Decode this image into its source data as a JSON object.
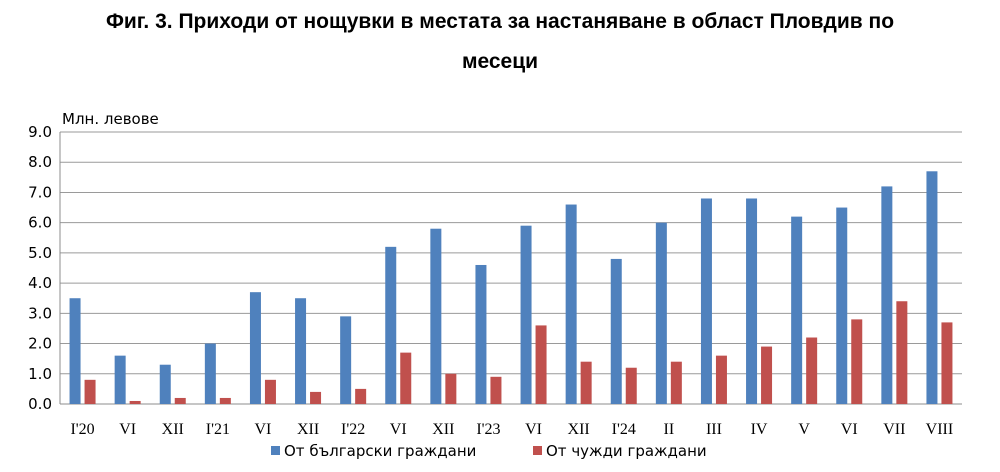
{
  "chart_data": {
    "type": "bar",
    "title_line1": "Фиг. 3. Приходи от нощувки в местата за настаняване в област Пловдив по",
    "title_line2": "месеци",
    "ylabel": "Млн. левове",
    "xlabel": "",
    "ylim": [
      0,
      9
    ],
    "yticks": [
      "0.0",
      "1.0",
      "2.0",
      "3.0",
      "4.0",
      "5.0",
      "6.0",
      "7.0",
      "8.0",
      "9.0"
    ],
    "grid": true,
    "legend_position": "bottom",
    "categories": [
      "I'20",
      "VI",
      "XII",
      "I'21",
      "VI",
      "XII",
      "I'22",
      "VI",
      "XII",
      "I'23",
      "VI",
      "XII",
      "I'24",
      "II",
      "III",
      "IV",
      "V",
      "VI",
      "VII",
      "VIII"
    ],
    "series": [
      {
        "name": "От български граждани",
        "color": "#4F81BD",
        "values": [
          3.5,
          1.6,
          1.3,
          2.0,
          3.7,
          3.5,
          2.9,
          5.2,
          5.8,
          4.6,
          5.9,
          6.6,
          4.8,
          6.0,
          6.8,
          6.8,
          6.2,
          6.5,
          7.2,
          7.7
        ]
      },
      {
        "name": "От чужди граждани",
        "color": "#C0504D",
        "values": [
          0.8,
          0.1,
          0.2,
          0.2,
          0.8,
          0.4,
          0.5,
          1.7,
          1.0,
          0.9,
          2.6,
          1.4,
          1.2,
          1.4,
          1.6,
          1.9,
          2.2,
          2.8,
          3.4,
          2.7
        ]
      }
    ]
  }
}
